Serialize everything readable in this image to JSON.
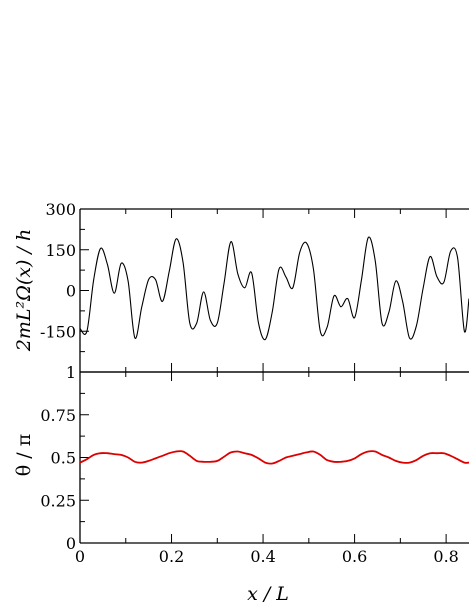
{
  "chart_data": [
    {
      "type": "line",
      "panel": "top",
      "ylabel": "2mL²Ω(x) / h",
      "xlabel": "",
      "xlim": [
        0,
        0.85
      ],
      "ylim": [
        -300,
        300
      ],
      "y_ticks": [
        300,
        150,
        0,
        -150
      ],
      "y_tick_labels": [
        "300",
        "150",
        "0",
        "-150"
      ],
      "x_ticks": [
        0,
        0.2,
        0.4,
        0.6,
        0.8
      ],
      "grid": false,
      "series": [
        {
          "color": "#000000",
          "x": [
            0.0,
            0.015,
            0.03,
            0.045,
            0.06,
            0.075,
            0.09,
            0.105,
            0.12,
            0.135,
            0.15,
            0.165,
            0.18,
            0.195,
            0.21,
            0.225,
            0.24,
            0.255,
            0.27,
            0.285,
            0.3,
            0.315,
            0.33,
            0.345,
            0.36,
            0.375,
            0.39,
            0.405,
            0.42,
            0.435,
            0.45,
            0.465,
            0.48,
            0.495,
            0.51,
            0.525,
            0.54,
            0.555,
            0.57,
            0.585,
            0.6,
            0.615,
            0.63,
            0.645,
            0.66,
            0.675,
            0.69,
            0.705,
            0.72,
            0.735,
            0.75,
            0.765,
            0.78,
            0.795,
            0.81,
            0.825,
            0.84,
            0.85
          ],
          "y": [
            -140,
            -150,
            40,
            155,
            95,
            -10,
            100,
            35,
            -175,
            -60,
            40,
            40,
            -40,
            70,
            190,
            105,
            -120,
            -120,
            -5,
            -110,
            -120,
            30,
            180,
            60,
            10,
            65,
            -120,
            -180,
            -80,
            80,
            50,
            10,
            140,
            175,
            80,
            -150,
            -135,
            -20,
            -60,
            -30,
            -100,
            40,
            195,
            110,
            -120,
            -80,
            35,
            -40,
            -175,
            -130,
            10,
            125,
            50,
            30,
            145,
            120,
            -150,
            -30
          ]
        }
      ]
    },
    {
      "type": "line",
      "panel": "bottom",
      "ylabel": "θ / π",
      "xlabel": "x / L",
      "xlim": [
        0,
        0.85
      ],
      "ylim": [
        0,
        1
      ],
      "y_ticks": [
        1,
        0.75,
        0.5,
        0.25,
        0
      ],
      "y_tick_labels": [
        "1",
        "0.75",
        "0.5",
        "0.25",
        "0"
      ],
      "x_ticks": [
        0,
        0.2,
        0.4,
        0.6,
        0.8
      ],
      "x_tick_labels": [
        "0",
        "0.2",
        "0.4",
        "0.6",
        "0.8"
      ],
      "grid": false,
      "series": [
        {
          "color": "#dd0000",
          "x": [
            0.0,
            0.015,
            0.03,
            0.045,
            0.06,
            0.075,
            0.09,
            0.105,
            0.12,
            0.135,
            0.15,
            0.165,
            0.18,
            0.195,
            0.21,
            0.225,
            0.24,
            0.255,
            0.27,
            0.285,
            0.3,
            0.315,
            0.33,
            0.345,
            0.36,
            0.375,
            0.39,
            0.405,
            0.42,
            0.435,
            0.45,
            0.465,
            0.48,
            0.495,
            0.51,
            0.525,
            0.54,
            0.555,
            0.57,
            0.585,
            0.6,
            0.615,
            0.63,
            0.645,
            0.66,
            0.675,
            0.69,
            0.705,
            0.72,
            0.735,
            0.75,
            0.765,
            0.78,
            0.795,
            0.81,
            0.825,
            0.84,
            0.85
          ],
          "y": [
            0.47,
            0.49,
            0.515,
            0.525,
            0.525,
            0.52,
            0.515,
            0.5,
            0.475,
            0.47,
            0.48,
            0.495,
            0.51,
            0.525,
            0.535,
            0.535,
            0.51,
            0.48,
            0.475,
            0.475,
            0.48,
            0.505,
            0.53,
            0.535,
            0.525,
            0.515,
            0.495,
            0.47,
            0.465,
            0.48,
            0.5,
            0.51,
            0.52,
            0.53,
            0.535,
            0.515,
            0.485,
            0.475,
            0.475,
            0.48,
            0.495,
            0.52,
            0.535,
            0.535,
            0.515,
            0.5,
            0.48,
            0.47,
            0.47,
            0.485,
            0.51,
            0.525,
            0.525,
            0.525,
            0.51,
            0.49,
            0.47,
            0.47
          ]
        }
      ]
    }
  ]
}
